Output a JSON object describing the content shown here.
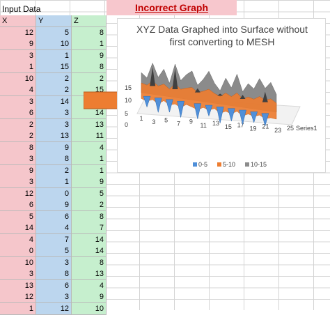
{
  "sheet": {
    "input_title": "Input Data",
    "headers": [
      "X",
      "Y",
      "Z"
    ],
    "rows": [
      [
        12,
        5,
        8
      ],
      [
        9,
        10,
        1
      ],
      [
        3,
        1,
        9
      ],
      [
        1,
        15,
        8
      ],
      [
        10,
        2,
        2
      ],
      [
        4,
        2,
        15
      ],
      [
        3,
        14,
        ""
      ],
      [
        6,
        3,
        14
      ],
      [
        2,
        3,
        13
      ],
      [
        2,
        13,
        11
      ],
      [
        8,
        9,
        4
      ],
      [
        3,
        8,
        1
      ],
      [
        9,
        2,
        1
      ],
      [
        3,
        1,
        9
      ],
      [
        12,
        0,
        5
      ],
      [
        6,
        9,
        2
      ],
      [
        5,
        6,
        8
      ],
      [
        14,
        4,
        7
      ],
      [
        4,
        7,
        14
      ],
      [
        0,
        5,
        14
      ],
      [
        10,
        3,
        8
      ],
      [
        3,
        8,
        13
      ],
      [
        13,
        6,
        4
      ],
      [
        12,
        3,
        9
      ],
      [
        1,
        12,
        10
      ]
    ]
  },
  "banner": {
    "label": "Incorrect Graph"
  },
  "chart": {
    "title_line1": "XYZ Data Graphed into Surface without",
    "title_line2": "first converting to MESH",
    "z_ticks": [
      "15",
      "10",
      "5",
      "0"
    ],
    "x_ticks": [
      "1",
      "3",
      "5",
      "7",
      "9",
      "11",
      "13",
      "15",
      "17",
      "19",
      "21",
      "23",
      "25"
    ],
    "series_label": "Series1",
    "legend": [
      {
        "label": "0-5",
        "color": "#4f8fd9"
      },
      {
        "label": "5-10",
        "color": "#ed7d31"
      },
      {
        "label": "10-15",
        "color": "#8c8c8c"
      }
    ]
  },
  "colors": {
    "x_col": "#f5c6cb",
    "y_col": "#bcd6ee",
    "z_col": "#c6efce",
    "arrow": "#ed7d31",
    "banner_text": "#c00000"
  }
}
